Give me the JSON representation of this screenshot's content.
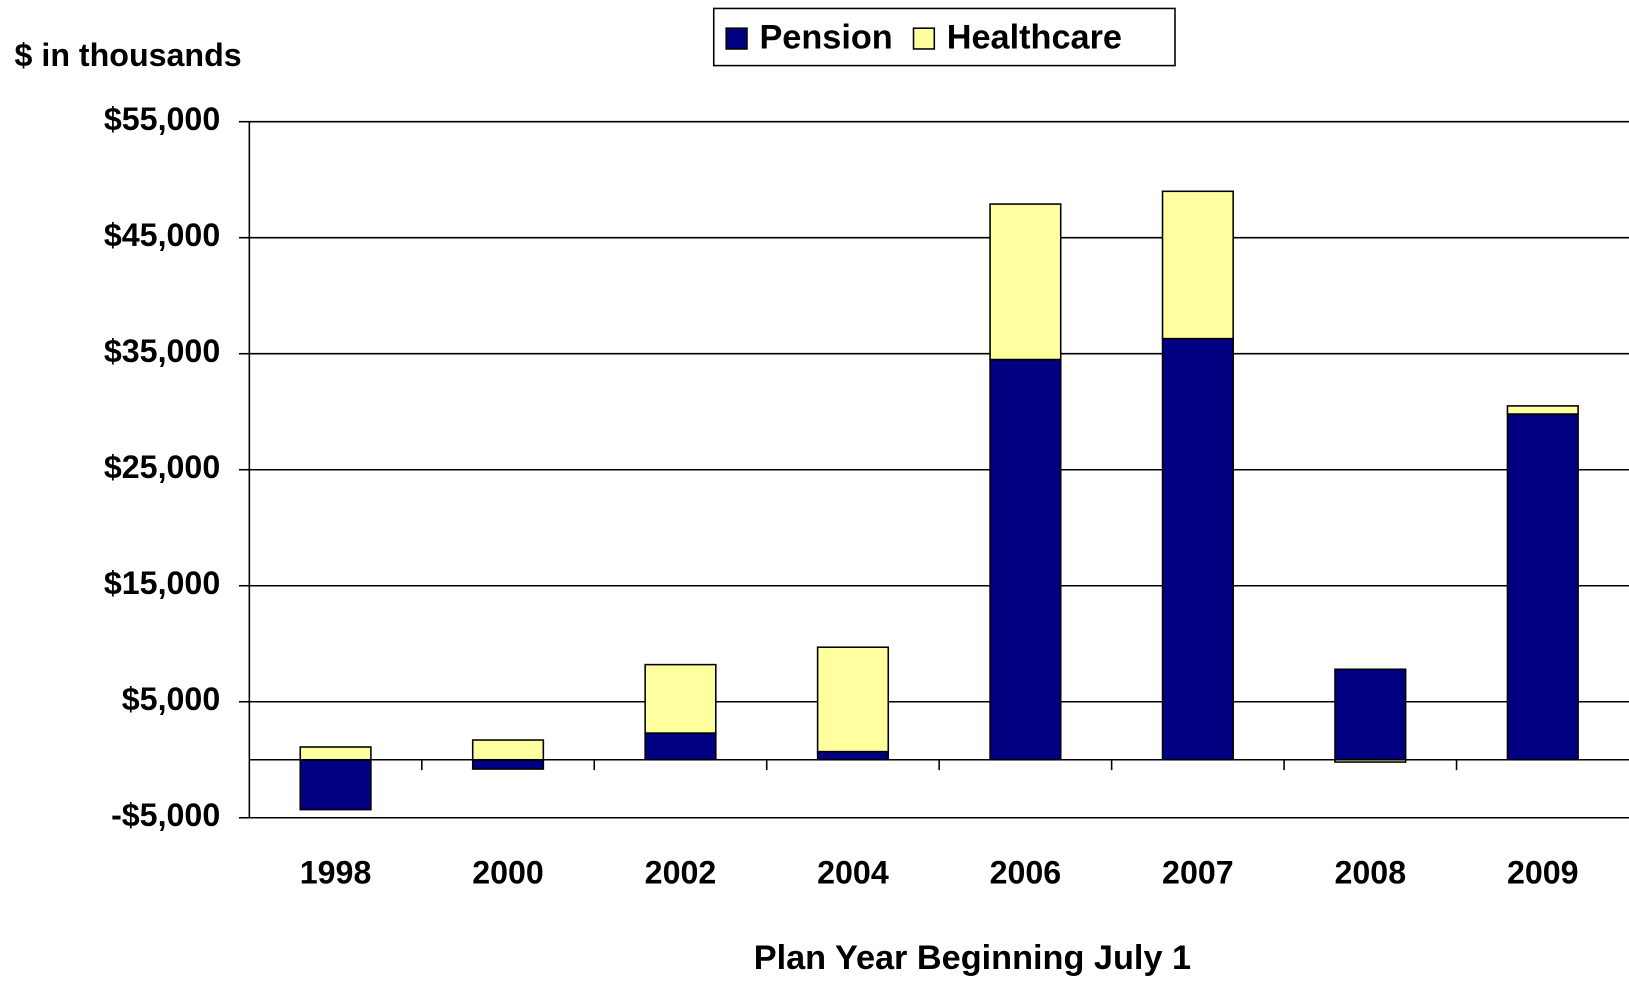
{
  "chart_data": {
    "type": "stacked-bar",
    "y_label": "$ in thousands",
    "x_label": "Plan Year Beginning July 1",
    "categories": [
      "1998",
      "2000",
      "2002",
      "2004",
      "2006",
      "2007",
      "2008",
      "2009"
    ],
    "series": [
      {
        "name": "Pension",
        "color": "#000080",
        "values": [
          -4300,
          -800,
          2300,
          700,
          34500,
          36300,
          7800,
          29800
        ]
      },
      {
        "name": "Healthcare",
        "color": "#ffffa0",
        "values": [
          1100,
          1700,
          5900,
          9000,
          13400,
          12700,
          -200,
          700
        ]
      }
    ],
    "ylim": [
      -5000,
      55000
    ],
    "yticks": [
      {
        "value": -5000,
        "label": "-$5,000"
      },
      {
        "value": 5000,
        "label": "$5,000"
      },
      {
        "value": 15000,
        "label": "$15,000"
      },
      {
        "value": 25000,
        "label": "$25,000"
      },
      {
        "value": 35000,
        "label": "$35,000"
      },
      {
        "value": 45000,
        "label": "$45,000"
      },
      {
        "value": 55000,
        "label": "$55,000"
      }
    ],
    "grid": true,
    "legend": "top"
  }
}
